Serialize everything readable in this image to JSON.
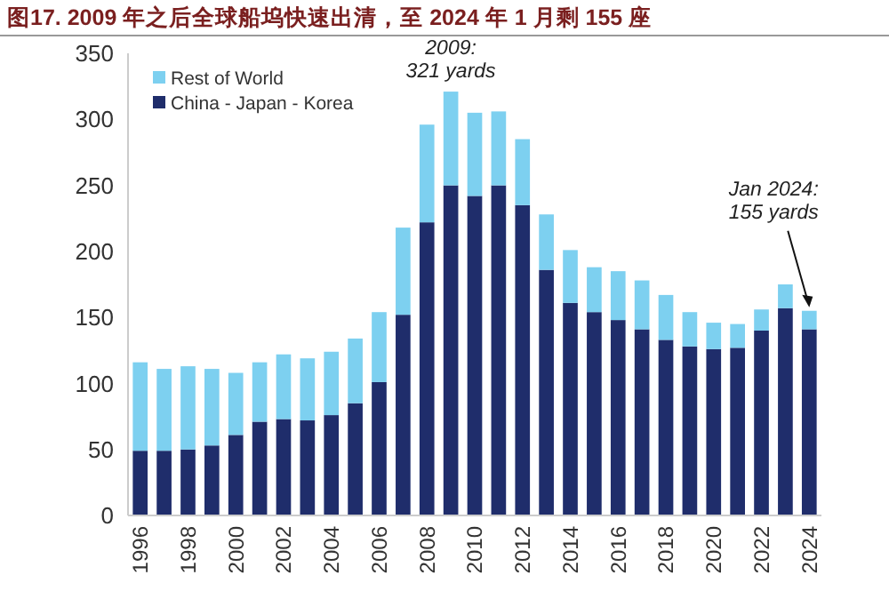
{
  "chart_data": {
    "type": "bar",
    "stacked": true,
    "title": "图17. 2009 年之后全球船坞快速出清，至 2024 年 1 月剩 155 座",
    "categories": [
      "1996",
      null,
      "1998",
      null,
      "2000",
      null,
      "2002",
      null,
      "2004",
      null,
      "2006",
      null,
      "2008",
      null,
      "2010",
      null,
      "2012",
      null,
      "2014",
      null,
      "2016",
      null,
      "2018",
      null,
      "2020",
      null,
      "2022",
      null,
      "2024"
    ],
    "series": [
      {
        "name": "China - Japan - Korea",
        "color": "#1f2d6b",
        "values": [
          49,
          49,
          50,
          53,
          61,
          71,
          73,
          72,
          76,
          85,
          101,
          152,
          222,
          250,
          242,
          250,
          235,
          186,
          161,
          154,
          148,
          141,
          133,
          128,
          126,
          127,
          140,
          157,
          141
        ]
      },
      {
        "name": "Rest of World",
        "color": "#7dd0f0",
        "values": [
          67,
          62,
          63,
          58,
          47,
          45,
          49,
          47,
          48,
          49,
          53,
          66,
          74,
          71,
          63,
          56,
          50,
          42,
          40,
          34,
          37,
          37,
          34,
          26,
          20,
          18,
          16,
          18,
          14
        ]
      }
    ],
    "ylim": [
      0,
      350
    ],
    "yticks": [
      0,
      50,
      100,
      150,
      200,
      250,
      300,
      350
    ],
    "legend": "top left",
    "grid": false,
    "annotations": [
      {
        "text": "2009:\n321 yards",
        "y": 321
      },
      {
        "text": "Jan 2024:\n155 yards",
        "x": "2024",
        "y": 155
      }
    ]
  }
}
